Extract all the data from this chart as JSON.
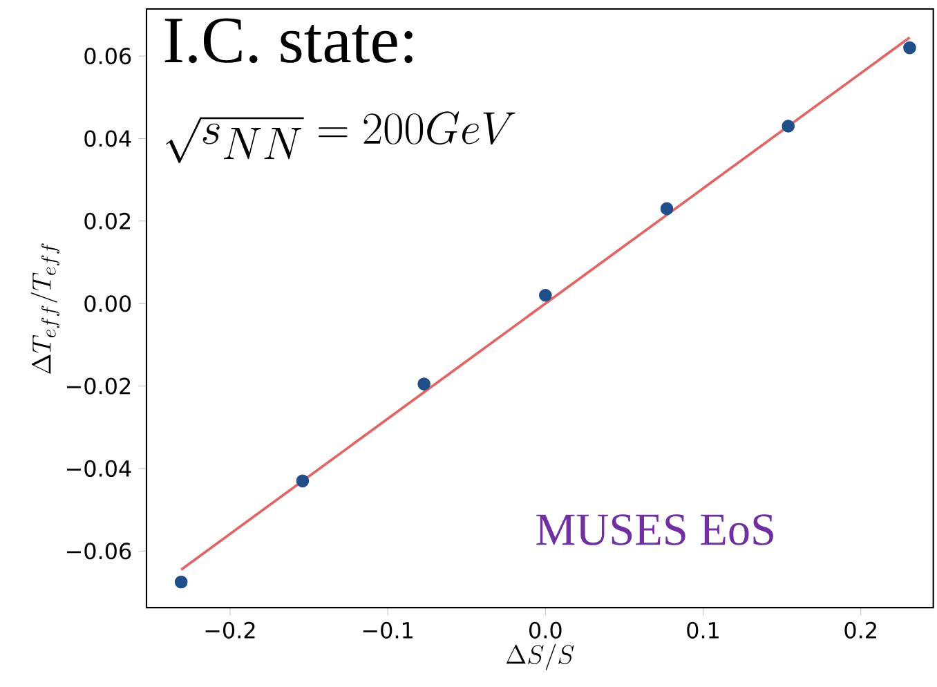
{
  "chart_data": {
    "type": "scatter",
    "xlabel": "\\Delta S/S",
    "ylabel": "\\Delta T_{eff}/T_{eff}",
    "xlim": [
      -0.253,
      0.246
    ],
    "ylim": [
      -0.0737,
      0.0714
    ],
    "xticks": [
      {
        "value": -0.2,
        "label": "−0.2"
      },
      {
        "value": -0.1,
        "label": "−0.1"
      },
      {
        "value": 0,
        "label": "0.0"
      },
      {
        "value": 0.1,
        "label": "0.1"
      },
      {
        "value": 0.2,
        "label": "0.2"
      }
    ],
    "yticks": [
      {
        "value": -0.06,
        "label": "−0.06"
      },
      {
        "value": -0.04,
        "label": "−0.04"
      },
      {
        "value": -0.02,
        "label": "−0.02"
      },
      {
        "value": 0,
        "label": "0.00"
      },
      {
        "value": 0.02,
        "label": "0.02"
      },
      {
        "value": 0.04,
        "label": "0.04"
      },
      {
        "value": 0.06,
        "label": "0.06"
      }
    ],
    "series": [
      {
        "type": "line",
        "color": "#e06666",
        "marker": "none",
        "x": [
          -0.231,
          0.231
        ],
        "values": [
          -0.0645,
          0.0645
        ]
      },
      {
        "color": "#1f4e89",
        "marker": "circle",
        "x": [
          -0.231,
          -0.154,
          -0.077,
          0,
          0.077,
          0.154,
          0.231
        ],
        "values": [
          -0.0675,
          -0.043,
          -0.0195,
          0.002,
          0.023,
          0.043,
          0.062
        ]
      }
    ],
    "annotations": [
      "I.C. state:",
      "\\sqrt{s_{NN}} = 200GeV",
      "MUSES EoS"
    ]
  }
}
